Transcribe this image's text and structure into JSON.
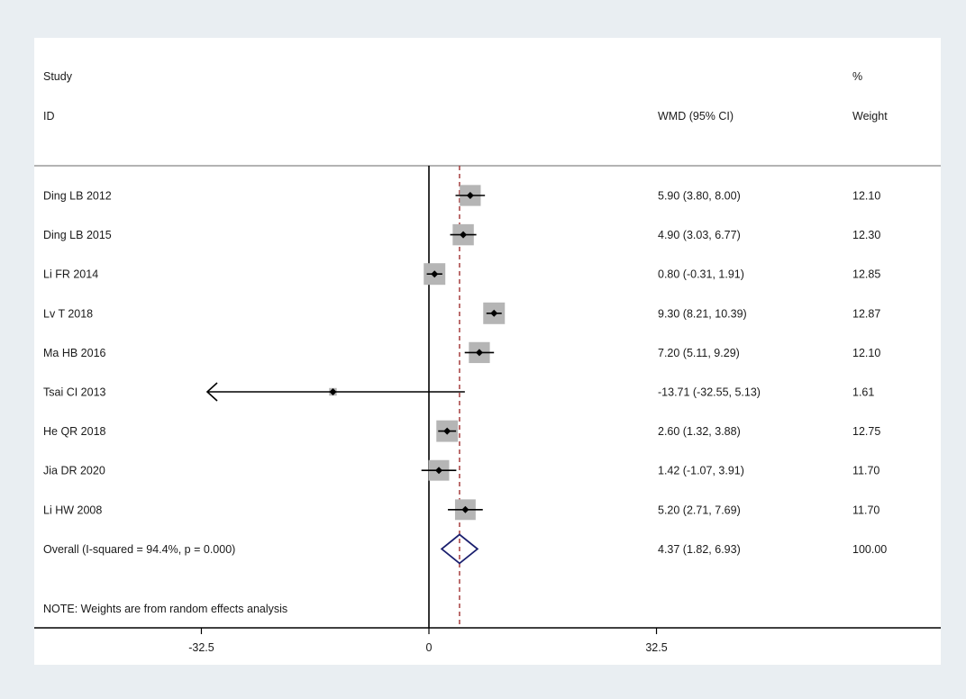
{
  "header": {
    "study_line1": "Study",
    "study_line2": "ID",
    "effect_label": "WMD (95% CI)",
    "weight_line1": "%",
    "weight_line2": "Weight"
  },
  "note": "NOTE: Weights are from random effects analysis",
  "chart_data": {
    "type": "forest",
    "effect_measure": "WMD (95% CI)",
    "xticks": [
      -32.5,
      0,
      32.5
    ],
    "xtick_labels": [
      "-32.5",
      "0",
      "32.5"
    ],
    "null_line": 0,
    "overall_line": 4.37,
    "studies": [
      {
        "label": "Ding LB 2012",
        "est": 5.9,
        "lo": 3.8,
        "hi": 8.0,
        "ci_text": "5.90 (3.80, 8.00)",
        "weight": 12.1,
        "weight_text": "12.10"
      },
      {
        "label": "Ding LB 2015",
        "est": 4.9,
        "lo": 3.03,
        "hi": 6.77,
        "ci_text": "4.90 (3.03, 6.77)",
        "weight": 12.3,
        "weight_text": "12.30"
      },
      {
        "label": "Li FR 2014",
        "est": 0.8,
        "lo": -0.31,
        "hi": 1.91,
        "ci_text": "0.80 (-0.31, 1.91)",
        "weight": 12.85,
        "weight_text": "12.85"
      },
      {
        "label": "Lv T 2018",
        "est": 9.3,
        "lo": 8.21,
        "hi": 10.39,
        "ci_text": "9.30 (8.21, 10.39)",
        "weight": 12.87,
        "weight_text": "12.87"
      },
      {
        "label": "Ma HB 2016",
        "est": 7.2,
        "lo": 5.11,
        "hi": 9.29,
        "ci_text": "7.20 (5.11, 9.29)",
        "weight": 12.1,
        "weight_text": "12.10"
      },
      {
        "label": "Tsai CI 2013",
        "est": -13.71,
        "lo": -32.55,
        "hi": 5.13,
        "ci_text": "-13.71 (-32.55, 5.13)",
        "weight": 1.61,
        "weight_text": "1.61",
        "lo_clipped": true
      },
      {
        "label": "He QR 2018",
        "est": 2.6,
        "lo": 1.32,
        "hi": 3.88,
        "ci_text": "2.60 (1.32, 3.88)",
        "weight": 12.75,
        "weight_text": "12.75"
      },
      {
        "label": "Jia DR 2020",
        "est": 1.42,
        "lo": -1.07,
        "hi": 3.91,
        "ci_text": "1.42 (-1.07, 3.91)",
        "weight": 11.7,
        "weight_text": "11.70"
      },
      {
        "label": "Li HW 2008",
        "est": 5.2,
        "lo": 2.71,
        "hi": 7.69,
        "ci_text": "5.20 (2.71, 7.69)",
        "weight": 11.7,
        "weight_text": "11.70"
      }
    ],
    "overall": {
      "label": "Overall  (I-squared = 94.4%, p = 0.000)",
      "est": 4.37,
      "lo": 1.82,
      "hi": 6.93,
      "ci_text": "4.37 (1.82, 6.93)",
      "weight_text": "100.00"
    },
    "colors": {
      "box": "#b5b5b5",
      "point": "#000000",
      "ci": "#000000",
      "null_line": "#000000",
      "overall_line": "#a03030",
      "diamond": "#1a1f6e"
    }
  }
}
